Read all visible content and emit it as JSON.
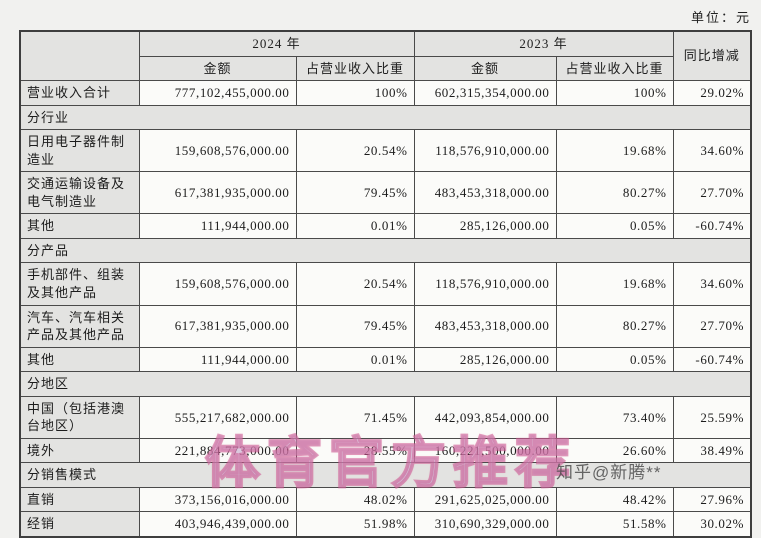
{
  "unit_label": "单位：元",
  "watermarks": {
    "center": "体育官方推荐",
    "credit": "知乎@新腾**"
  },
  "table": {
    "col_headers": {
      "year_2024": "2024 年",
      "year_2023": "2023 年",
      "yoy": "同比增减",
      "amount": "金额",
      "pct": "占营业收入比重"
    },
    "rows": [
      {
        "type": "data",
        "label": "营业收入合计",
        "amount_2024": "777,102,455,000.00",
        "pct_2024": "100%",
        "amount_2023": "602,315,354,000.00",
        "pct_2023": "100%",
        "yoy": "29.02%"
      },
      {
        "type": "section",
        "label": "分行业"
      },
      {
        "type": "data",
        "label": "日用电子器件制造业",
        "amount_2024": "159,608,576,000.00",
        "pct_2024": "20.54%",
        "amount_2023": "118,576,910,000.00",
        "pct_2023": "19.68%",
        "yoy": "34.60%"
      },
      {
        "type": "data",
        "label": "交通运输设备及电气制造业",
        "amount_2024": "617,381,935,000.00",
        "pct_2024": "79.45%",
        "amount_2023": "483,453,318,000.00",
        "pct_2023": "80.27%",
        "yoy": "27.70%"
      },
      {
        "type": "data",
        "label": "其他",
        "amount_2024": "111,944,000.00",
        "pct_2024": "0.01%",
        "amount_2023": "285,126,000.00",
        "pct_2023": "0.05%",
        "yoy": "-60.74%"
      },
      {
        "type": "section",
        "label": "分产品"
      },
      {
        "type": "data",
        "label": "手机部件、组装及其他产品",
        "amount_2024": "159,608,576,000.00",
        "pct_2024": "20.54%",
        "amount_2023": "118,576,910,000.00",
        "pct_2023": "19.68%",
        "yoy": "34.60%"
      },
      {
        "type": "data",
        "label": "汽车、汽车相关产品及其他产品",
        "amount_2024": "617,381,935,000.00",
        "pct_2024": "79.45%",
        "amount_2023": "483,453,318,000.00",
        "pct_2023": "80.27%",
        "yoy": "27.70%"
      },
      {
        "type": "data",
        "label": "其他",
        "amount_2024": "111,944,000.00",
        "pct_2024": "0.01%",
        "amount_2023": "285,126,000.00",
        "pct_2023": "0.05%",
        "yoy": "-60.74%"
      },
      {
        "type": "section",
        "label": "分地区"
      },
      {
        "type": "data",
        "label": "中国（包括港澳台地区）",
        "amount_2024": "555,217,682,000.00",
        "pct_2024": "71.45%",
        "amount_2023": "442,093,854,000.00",
        "pct_2023": "73.40%",
        "yoy": "25.59%"
      },
      {
        "type": "data",
        "label": "境外",
        "amount_2024": "221,884,773,000.00",
        "pct_2024": "28.55%",
        "amount_2023": "160,221,500,000.00",
        "pct_2023": "26.60%",
        "yoy": "38.49%"
      },
      {
        "type": "section",
        "label": "分销售模式"
      },
      {
        "type": "data",
        "label": "直销",
        "amount_2024": "373,156,016,000.00",
        "pct_2024": "48.02%",
        "amount_2023": "291,625,025,000.00",
        "pct_2023": "48.42%",
        "yoy": "27.96%"
      },
      {
        "type": "data",
        "label": "经销",
        "amount_2024": "403,946,439,000.00",
        "pct_2024": "51.98%",
        "amount_2023": "310,690,329,000.00",
        "pct_2023": "51.58%",
        "yoy": "30.02%"
      }
    ]
  }
}
